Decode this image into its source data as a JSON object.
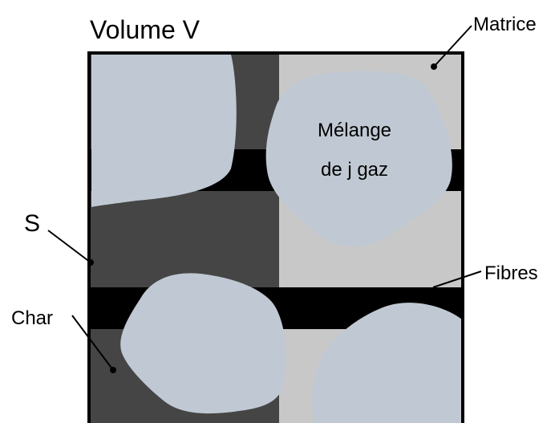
{
  "labels": {
    "volume": "Volume V",
    "matrix": "Matrice",
    "mixture_line1": "Mélange",
    "mixture_line2": "de j gaz",
    "surface": "S",
    "fibers": "Fibres",
    "char": "Char"
  },
  "colors": {
    "char_region": "#454545",
    "matrix_region": "#c8c8c8",
    "fibers": "#000000",
    "gas_pores": "#c0c9d3",
    "border": "#000000",
    "text": "#000000"
  }
}
